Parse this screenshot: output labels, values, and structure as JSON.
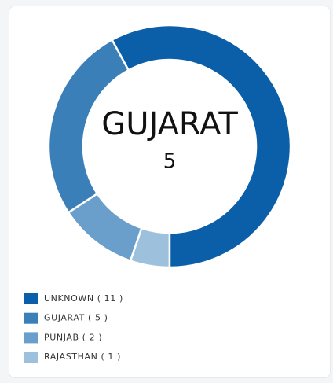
{
  "chart_data": {
    "type": "doughnut",
    "categories": [
      "UNKNOWN",
      "GUJARAT",
      "PUNJAB",
      "RAJASTHAN"
    ],
    "values": [
      11,
      5,
      2,
      1
    ],
    "value_labels": [
      "( 11 )",
      "( 5 )",
      "( 2 )",
      "( 1 )"
    ],
    "colors": [
      "#0b5ea8",
      "#3a7fb8",
      "#6a9fcb",
      "#9dc0dd"
    ],
    "center": {
      "label": "GUJARAT",
      "value": 5
    }
  }
}
